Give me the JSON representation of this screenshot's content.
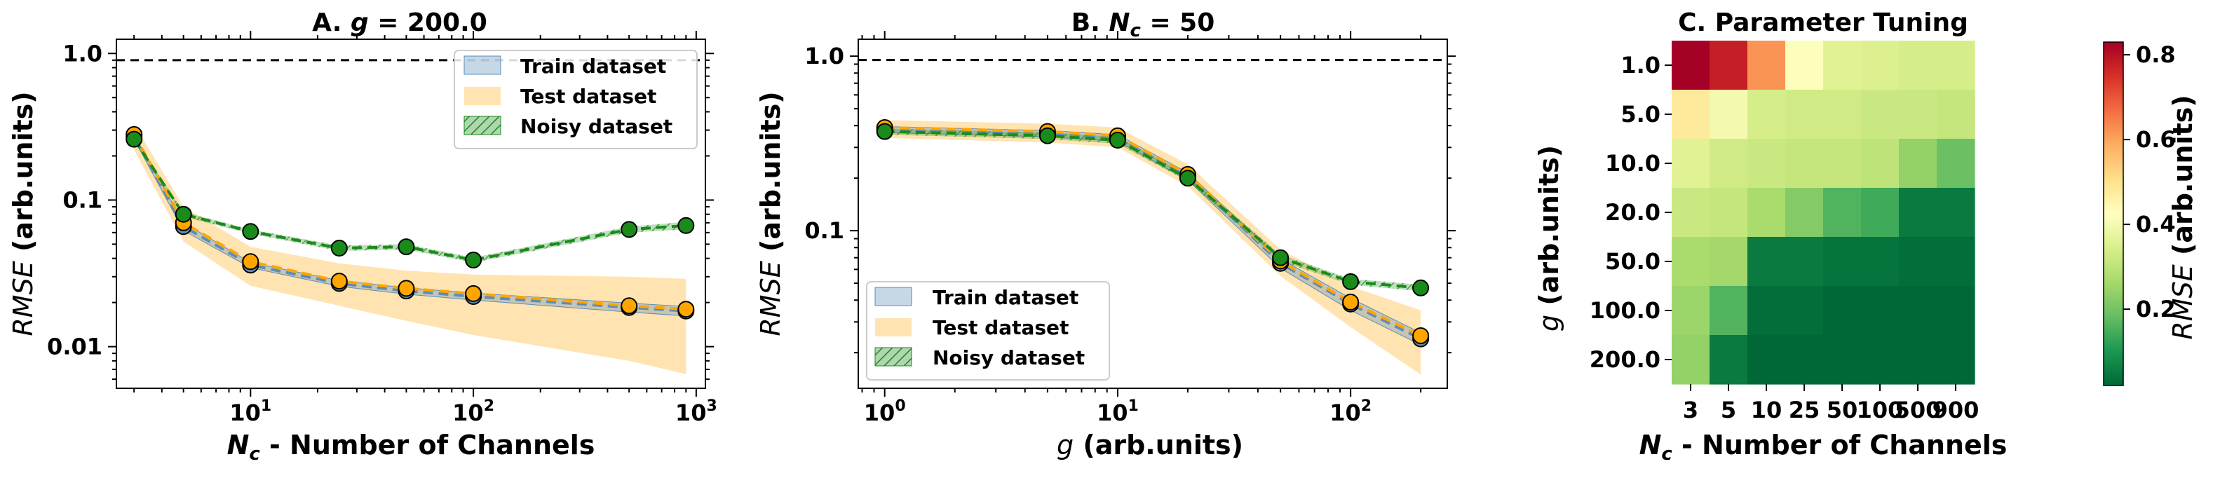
{
  "chart_data": [
    {
      "type": "line",
      "panel": "A",
      "title_prefix": "A. ",
      "title_var": "g",
      "title_rest": " = 200.0",
      "xlabel_var": "N",
      "xlabel_sub": "c",
      "xlabel_rest": " - Number of Channels",
      "ylabel_var": "RMSE",
      "ylabel_rest": " (arb.units)",
      "xscale": "log",
      "yscale": "log",
      "xlim": [
        2.5,
        1100
      ],
      "ylim": [
        0.0052,
        1.25
      ],
      "xticks": [
        {
          "v": 10,
          "b": "10",
          "e": "1"
        },
        {
          "v": 100,
          "b": "10",
          "e": "2"
        },
        {
          "v": 1000,
          "b": "10",
          "e": "3"
        }
      ],
      "yticks": [
        {
          "v": 0.01,
          "label": "0.01"
        },
        {
          "v": 0.1,
          "label": "0.1"
        },
        {
          "v": 1.0,
          "label": "1.0"
        }
      ],
      "reference_line": 0.9,
      "legend_position": "top-right",
      "x": [
        3,
        5,
        10,
        25,
        50,
        100,
        500,
        900
      ],
      "series": [
        {
          "name": "Train dataset",
          "color": "#5b8db8",
          "values": [
            0.27,
            0.066,
            0.036,
            0.027,
            0.024,
            0.022,
            0.0185,
            0.0175
          ],
          "band_low": [
            0.26,
            0.062,
            0.0345,
            0.0258,
            0.0228,
            0.0208,
            0.0172,
            0.0162
          ],
          "band_high": [
            0.28,
            0.07,
            0.0375,
            0.0282,
            0.0252,
            0.0232,
            0.0198,
            0.0188
          ]
        },
        {
          "name": "Test dataset",
          "color": "#ffa500",
          "values": [
            0.28,
            0.07,
            0.038,
            0.028,
            0.025,
            0.023,
            0.019,
            0.018
          ],
          "band_low": [
            0.22,
            0.052,
            0.026,
            0.019,
            0.015,
            0.012,
            0.008,
            0.0065
          ],
          "band_high": [
            0.33,
            0.09,
            0.048,
            0.037,
            0.033,
            0.031,
            0.03,
            0.029
          ]
        },
        {
          "name": "Noisy dataset",
          "color": "#1a8a1a",
          "values": [
            0.26,
            0.08,
            0.061,
            0.047,
            0.048,
            0.039,
            0.063,
            0.067
          ],
          "band_low": [
            0.25,
            0.077,
            0.059,
            0.045,
            0.046,
            0.0375,
            0.06,
            0.063
          ],
          "band_high": [
            0.27,
            0.083,
            0.063,
            0.049,
            0.05,
            0.0405,
            0.066,
            0.071
          ]
        }
      ]
    },
    {
      "type": "line",
      "panel": "B",
      "title_prefix": "B. ",
      "title_var": "N",
      "title_sub": "c",
      "title_rest": " = 50",
      "xlabel_var": "g",
      "xlabel_rest": " (arb.units)",
      "ylabel_var": "RMSE",
      "ylabel_rest": " (arb.units)",
      "xscale": "log",
      "yscale": "log",
      "xlim": [
        0.77,
        260
      ],
      "ylim": [
        0.0125,
        1.25
      ],
      "xticks": [
        {
          "v": 1,
          "b": "10",
          "e": "0"
        },
        {
          "v": 10,
          "b": "10",
          "e": "1"
        },
        {
          "v": 100,
          "b": "10",
          "e": "2"
        }
      ],
      "yticks": [
        {
          "v": 0.1,
          "label": "0.1"
        },
        {
          "v": 1.0,
          "label": "1.0"
        }
      ],
      "reference_line": 0.95,
      "legend_position": "bottom-left",
      "x": [
        1,
        5,
        10,
        20,
        50,
        100,
        200
      ],
      "series": [
        {
          "name": "Train dataset",
          "color": "#5b8db8",
          "values": [
            0.38,
            0.36,
            0.34,
            0.205,
            0.065,
            0.038,
            0.024
          ],
          "band_low": [
            0.365,
            0.345,
            0.325,
            0.195,
            0.061,
            0.035,
            0.0222
          ],
          "band_high": [
            0.395,
            0.375,
            0.355,
            0.215,
            0.069,
            0.041,
            0.026
          ]
        },
        {
          "name": "Test dataset",
          "color": "#ffa500",
          "values": [
            0.39,
            0.37,
            0.35,
            0.21,
            0.067,
            0.039,
            0.025
          ],
          "band_low": [
            0.34,
            0.32,
            0.3,
            0.18,
            0.055,
            0.028,
            0.015
          ],
          "band_high": [
            0.43,
            0.41,
            0.39,
            0.24,
            0.078,
            0.048,
            0.035
          ]
        },
        {
          "name": "Noisy dataset",
          "color": "#1a8a1a",
          "values": [
            0.37,
            0.35,
            0.33,
            0.2,
            0.07,
            0.051,
            0.047
          ],
          "band_low": [
            0.355,
            0.335,
            0.315,
            0.192,
            0.067,
            0.049,
            0.045
          ],
          "band_high": [
            0.385,
            0.365,
            0.345,
            0.208,
            0.073,
            0.053,
            0.049
          ]
        }
      ]
    },
    {
      "type": "heatmap",
      "panel": "C",
      "title": "C. Parameter Tuning",
      "xlabel_var": "N",
      "xlabel_sub": "c",
      "xlabel_rest": " - Number of Channels",
      "ylabel_var": "g",
      "ylabel_rest": " (arb.units)",
      "x_categories": [
        "3",
        "5",
        "10",
        "25",
        "50",
        "100",
        "500",
        "900"
      ],
      "y_categories": [
        "1.0",
        "5.0",
        "10.0",
        "20.0",
        "50.0",
        "100.0",
        "200.0"
      ],
      "values": [
        [
          0.83,
          0.78,
          0.62,
          0.42,
          0.36,
          0.35,
          0.34,
          0.34
        ],
        [
          0.48,
          0.4,
          0.34,
          0.33,
          0.33,
          0.32,
          0.32,
          0.31
        ],
        [
          0.36,
          0.33,
          0.32,
          0.31,
          0.31,
          0.3,
          0.24,
          0.19
        ],
        [
          0.32,
          0.31,
          0.27,
          0.22,
          0.16,
          0.14,
          0.05,
          0.05
        ],
        [
          0.27,
          0.26,
          0.05,
          0.05,
          0.04,
          0.04,
          0.03,
          0.03
        ],
        [
          0.25,
          0.16,
          0.03,
          0.03,
          0.02,
          0.02,
          0.02,
          0.02
        ],
        [
          0.24,
          0.05,
          0.02,
          0.02,
          0.02,
          0.02,
          0.02,
          0.02
        ]
      ],
      "colormap": "RdYlGn_r",
      "vmin": 0.02,
      "vmax": 0.83,
      "colorbar_ticks": [
        "0.2",
        "0.4",
        "0.6",
        "0.8"
      ],
      "colorbar_label_var": "RMSE",
      "colorbar_label_rest": " (arb.units)"
    }
  ]
}
